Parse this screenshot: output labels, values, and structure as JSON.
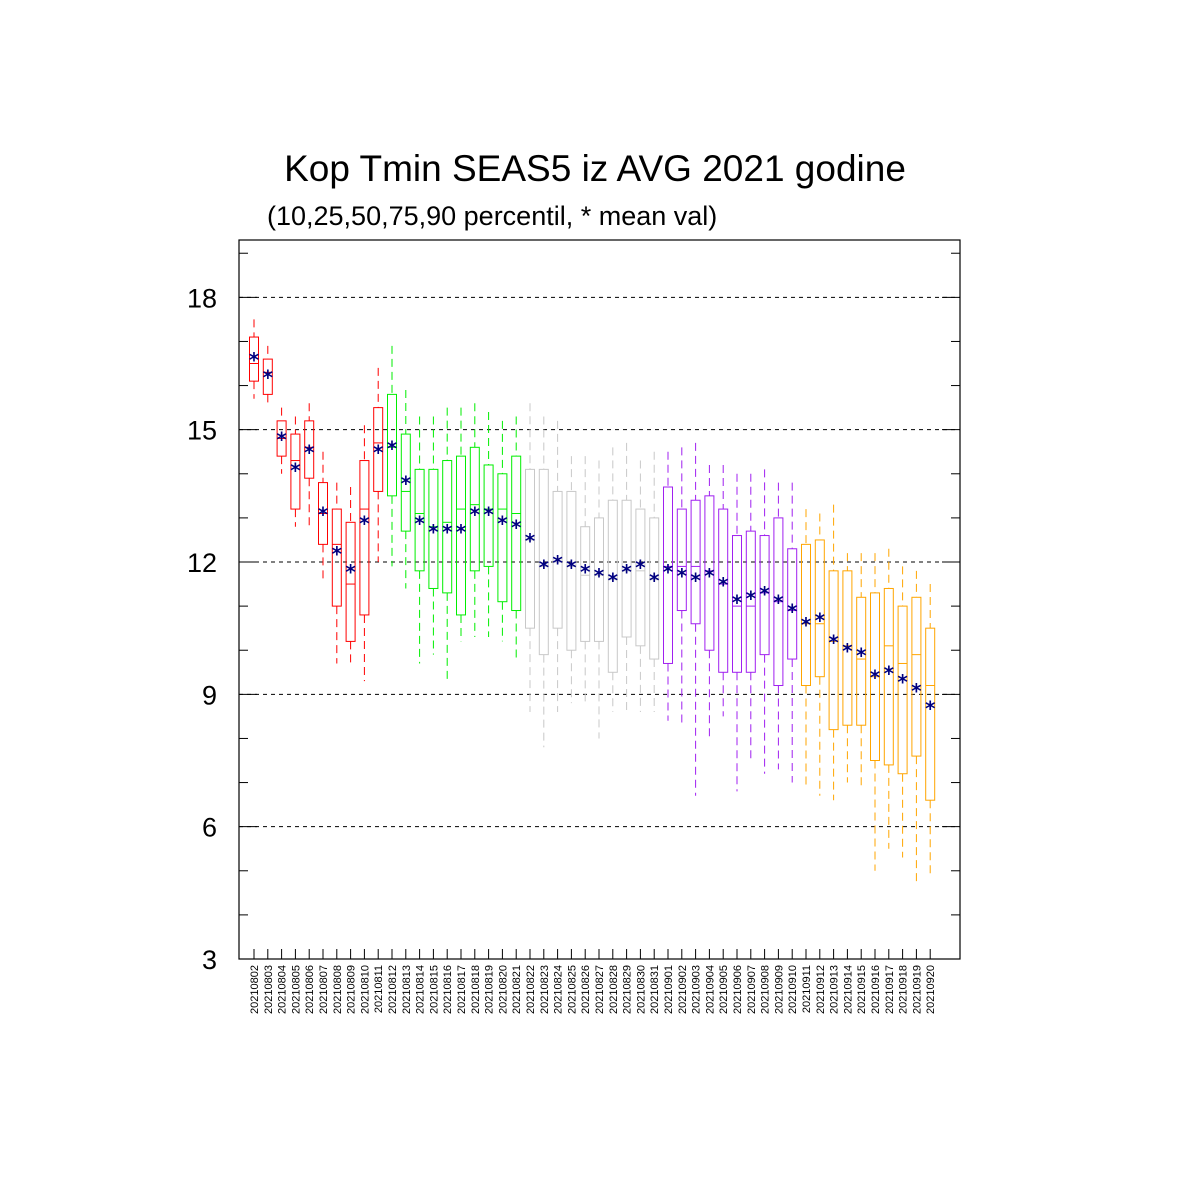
{
  "title": "Kop Tmin SEAS5 iz AVG 2021 godine",
  "subtitle": "(10,25,50,75,90 percentil, * mean val)",
  "chart_data": {
    "type": "box",
    "title": "Kop Tmin SEAS5 iz AVG 2021 godine",
    "subtitle": "(10,25,50,75,90 percentil, * mean val)",
    "ylim": [
      3,
      19.3
    ],
    "yticks": [
      3,
      6,
      9,
      12,
      15,
      18
    ],
    "grid": "horizontal dashed",
    "categories": [
      "20210802",
      "20210803",
      "20210804",
      "20210805",
      "20210806",
      "20210807",
      "20210808",
      "20210809",
      "20210810",
      "20210811",
      "20210812",
      "20210813",
      "20210814",
      "20210815",
      "20210816",
      "20210817",
      "20210818",
      "20210819",
      "20210820",
      "20210821",
      "20210822",
      "20210823",
      "20210824",
      "20210825",
      "20210826",
      "20210827",
      "20210828",
      "20210829",
      "20210830",
      "20210831",
      "20210901",
      "20210902",
      "20210903",
      "20210904",
      "20210905",
      "20210906",
      "20210907",
      "20210908",
      "20210909",
      "20210910",
      "20210911",
      "20210912",
      "20210913",
      "20210914",
      "20210915",
      "20210916",
      "20210917",
      "20210918",
      "20210919",
      "20210920"
    ],
    "colors": [
      "#ff0000",
      "#ff0000",
      "#ff0000",
      "#ff0000",
      "#ff0000",
      "#ff0000",
      "#ff0000",
      "#ff0000",
      "#ff0000",
      "#ff0000",
      "#00ee00",
      "#00ee00",
      "#00ee00",
      "#00ee00",
      "#00ee00",
      "#00ee00",
      "#00ee00",
      "#00ee00",
      "#00ee00",
      "#00ee00",
      "#c8c8c8",
      "#c8c8c8",
      "#c8c8c8",
      "#c8c8c8",
      "#c8c8c8",
      "#c8c8c8",
      "#c8c8c8",
      "#c8c8c8",
      "#c8c8c8",
      "#c8c8c8",
      "#a020f0",
      "#a020f0",
      "#a020f0",
      "#a020f0",
      "#a020f0",
      "#a020f0",
      "#a020f0",
      "#a020f0",
      "#a020f0",
      "#a020f0",
      "#ffa500",
      "#ffa500",
      "#ffa500",
      "#ffa500",
      "#ffa500",
      "#ffa500",
      "#ffa500",
      "#ffa500",
      "#ffa500",
      "#ffa500"
    ],
    "mean_color": "#000080",
    "p10": [
      15.7,
      15.6,
      14.0,
      12.8,
      12.8,
      11.6,
      9.7,
      9.7,
      9.3,
      12.0,
      11.9,
      11.4,
      9.7,
      9.9,
      9.3,
      10.2,
      10.3,
      10.3,
      10.2,
      9.8,
      8.6,
      7.8,
      8.6,
      8.8,
      8.8,
      8.0,
      8.6,
      8.6,
      8.6,
      8.6,
      8.4,
      8.3,
      6.7,
      8.0,
      8.5,
      6.8,
      7.5,
      7.2,
      7.3,
      7.0,
      6.9,
      6.7,
      6.6,
      7.0,
      6.9,
      5.0,
      5.5,
      5.3,
      4.7,
      4.9
    ],
    "p25": [
      16.1,
      15.8,
      14.4,
      13.2,
      13.9,
      12.4,
      11.0,
      10.2,
      10.8,
      13.6,
      13.5,
      12.7,
      11.8,
      11.4,
      11.3,
      10.8,
      11.8,
      11.9,
      11.1,
      10.9,
      10.5,
      9.9,
      10.5,
      10.0,
      10.2,
      10.2,
      9.5,
      10.3,
      10.1,
      9.8,
      9.7,
      10.9,
      10.6,
      10.0,
      9.5,
      9.5,
      9.5,
      9.9,
      9.2,
      9.8,
      9.2,
      9.4,
      8.2,
      8.3,
      8.3,
      7.5,
      7.4,
      7.2,
      7.6,
      6.6
    ],
    "p50": [
      16.5,
      16.3,
      14.8,
      14.3,
      14.6,
      13.1,
      12.4,
      11.5,
      13.2,
      14.7,
      14.6,
      13.6,
      13.1,
      12.8,
      12.9,
      13.2,
      13.3,
      13.2,
      13.2,
      13.1,
      12.5,
      11.9,
      12.0,
      11.9,
      11.7,
      11.7,
      11.6,
      11.8,
      11.8,
      11.6,
      11.9,
      11.9,
      11.9,
      11.8,
      11.5,
      11.0,
      11.0,
      11.3,
      11.1,
      10.9,
      10.6,
      10.6,
      10.2,
      10.1,
      9.8,
      9.4,
      10.1,
      9.7,
      9.9,
      9.2
    ],
    "p75": [
      17.1,
      16.6,
      15.2,
      14.9,
      15.2,
      13.8,
      13.2,
      12.9,
      14.3,
      15.5,
      15.8,
      14.9,
      14.1,
      14.1,
      14.3,
      14.4,
      14.6,
      14.2,
      14.0,
      14.4,
      14.1,
      14.1,
      13.6,
      13.6,
      12.8,
      13.0,
      13.4,
      13.4,
      13.2,
      13.0,
      13.7,
      13.2,
      13.4,
      13.5,
      13.2,
      12.6,
      12.7,
      12.6,
      13.0,
      12.3,
      12.4,
      12.5,
      11.8,
      11.8,
      11.2,
      11.3,
      11.4,
      11.0,
      11.2,
      10.5
    ],
    "p90": [
      17.5,
      16.9,
      15.5,
      15.3,
      15.6,
      14.5,
      13.8,
      13.7,
      15.1,
      16.4,
      16.9,
      15.9,
      15.3,
      15.3,
      15.5,
      15.5,
      15.6,
      15.4,
      15.2,
      15.3,
      15.6,
      15.3,
      15.2,
      14.4,
      14.4,
      14.3,
      14.6,
      14.7,
      14.3,
      14.5,
      14.5,
      14.6,
      14.7,
      14.2,
      14.2,
      14.0,
      14.0,
      14.1,
      13.8,
      13.8,
      13.2,
      13.1,
      13.3,
      12.2,
      12.2,
      12.2,
      12.3,
      11.9,
      11.8,
      11.5
    ],
    "mean": [
      16.6,
      16.2,
      14.8,
      14.1,
      14.5,
      13.1,
      12.2,
      11.8,
      12.9,
      14.5,
      14.6,
      13.8,
      12.9,
      12.7,
      12.7,
      12.7,
      13.1,
      13.1,
      12.9,
      12.8,
      12.5,
      11.9,
      12.0,
      11.9,
      11.8,
      11.7,
      11.6,
      11.8,
      11.9,
      11.6,
      11.8,
      11.7,
      11.6,
      11.7,
      11.5,
      11.1,
      11.2,
      11.3,
      11.1,
      10.9,
      10.6,
      10.7,
      10.2,
      10.0,
      9.9,
      9.4,
      9.5,
      9.3,
      9.1,
      8.7
    ]
  }
}
